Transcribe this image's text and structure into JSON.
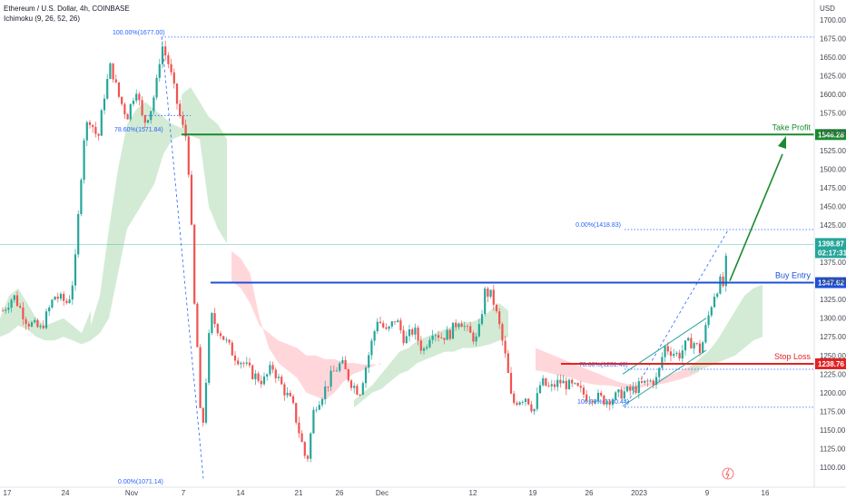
{
  "header": {
    "symbol": "Ethereum / U.S. Dollar, 4h, COINBASE",
    "indicator": "Ichimoku (9, 26, 52, 26)",
    "currency": "USD"
  },
  "chart_data": {
    "type": "candlestick",
    "ylim": [
      1093,
      1720
    ],
    "yticks": [
      1100,
      1125,
      1150,
      1175,
      1200,
      1225,
      1250,
      1275,
      1300,
      1325,
      1350,
      1375,
      1400,
      1425,
      1450,
      1475,
      1500,
      1525,
      1550,
      1575,
      1600,
      1625,
      1650,
      1675,
      1700
    ],
    "xticks": [
      "17",
      "24",
      "Nov",
      "7",
      "14",
      "21",
      "26",
      "Dec",
      "12",
      "19",
      "26",
      "2023",
      "9",
      "16"
    ],
    "last_price": {
      "price": "1398.87",
      "countdown": "02:17:31",
      "value": 1398.87
    },
    "levels": [
      {
        "name": "Take Profit",
        "value": 1546.28,
        "price": "1546.28",
        "color": "#1b8a2e"
      },
      {
        "name": "Buy Entry",
        "value": 1347.62,
        "price": "1347.62",
        "color": "#1e50d6"
      },
      {
        "name": "Stop Loss",
        "value": 1238.76,
        "price": "1238.76",
        "color": "#e02424"
      }
    ],
    "fib_labels": [
      {
        "text": "100.00%(1677.00)",
        "value": 1677
      },
      {
        "text": "78.60%(1571.84)",
        "value": 1571.84
      },
      {
        "text": "0.00%(1071.14)",
        "value": 1071.14
      },
      {
        "text": "0.00%(1418.83)",
        "value": 1418.83
      },
      {
        "text": "78.60%(1231.46)",
        "value": 1231.46
      },
      {
        "text": "100.00%(1180.44)",
        "value": 1180.44
      }
    ],
    "colors": {
      "up": "#26a69a",
      "down": "#ef5350",
      "cloud_bull": "#c8e6c9",
      "cloud_bear": "#ffcdd2"
    }
  }
}
